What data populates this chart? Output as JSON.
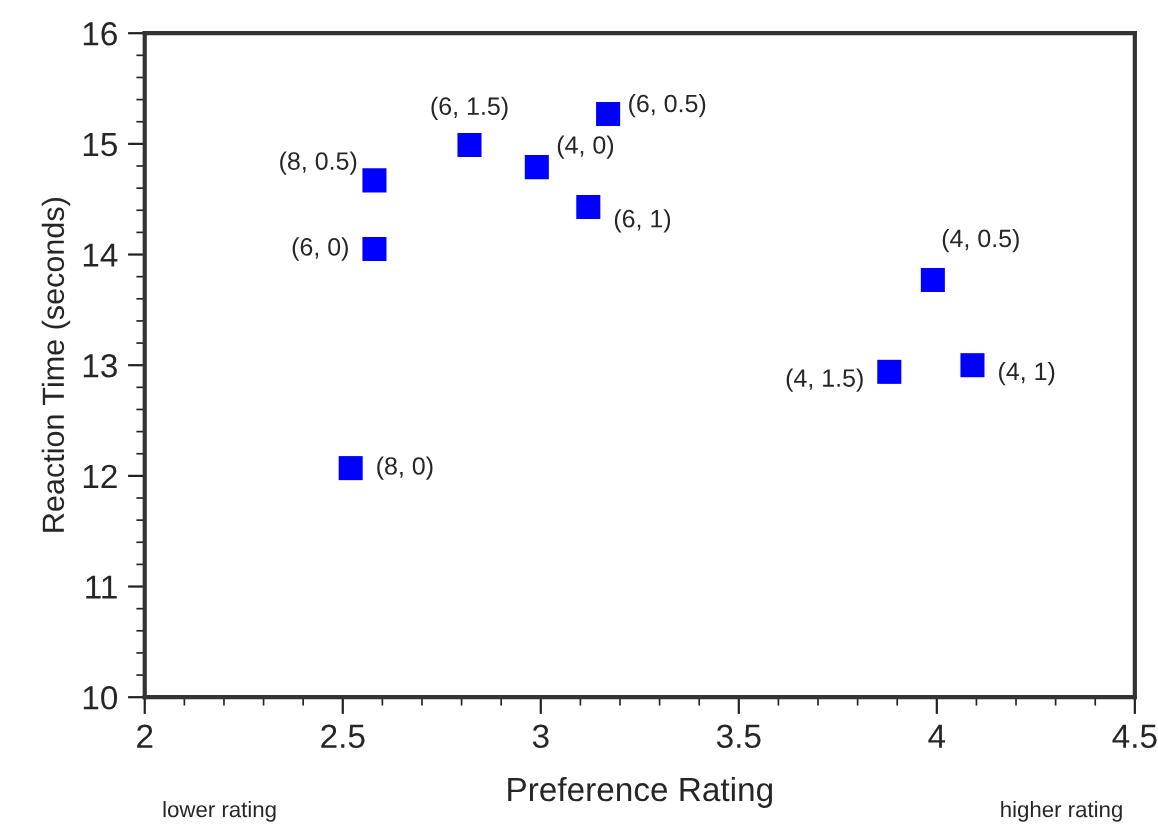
{
  "chart_data": {
    "type": "scatter",
    "xlabel": "Preference Rating",
    "ylabel": "Reaction Time (seconds)",
    "x": [
      2.58,
      2.58,
      2.82,
      2.99,
      3.12,
      3.17,
      2.52,
      3.99,
      3.88,
      4.09
    ],
    "series": [
      {
        "color": "#0000ff",
        "values": [
          14.67,
          14.05,
          14.99,
          14.79,
          14.43,
          15.27,
          12.07,
          13.77,
          12.94,
          13.0
        ]
      }
    ],
    "marker": "square",
    "grid": false,
    "legend": false,
    "xlim": [
      2,
      4.5
    ],
    "xticks": [
      2,
      2.5,
      3,
      3.5,
      4,
      4.5
    ],
    "ylim": [
      10,
      16
    ],
    "yticks": [
      10,
      11,
      12,
      13,
      14,
      15,
      16
    ],
    "annotations": [
      {
        "text": "(8, 0.5)",
        "x": 2.58,
        "y": 14.67
      },
      {
        "text": "(6, 0)",
        "x": 2.58,
        "y": 14.05
      },
      {
        "text": "(6, 1.5)",
        "x": 2.82,
        "y": 14.99
      },
      {
        "text": "(4, 0)",
        "x": 2.99,
        "y": 14.79
      },
      {
        "text": "(6, 1)",
        "x": 3.12,
        "y": 14.43
      },
      {
        "text": "(6, 0.5)",
        "x": 3.17,
        "y": 15.27
      },
      {
        "text": "(8, 0)",
        "x": 2.52,
        "y": 12.07
      },
      {
        "text": "(4, 0.5)",
        "x": 3.99,
        "y": 13.77
      },
      {
        "text": "(4, 1.5)",
        "x": 3.88,
        "y": 12.94
      },
      {
        "text": "(4, 1)",
        "x": 4.09,
        "y": 13.0
      },
      "lower rating",
      "higher rating"
    ]
  }
}
